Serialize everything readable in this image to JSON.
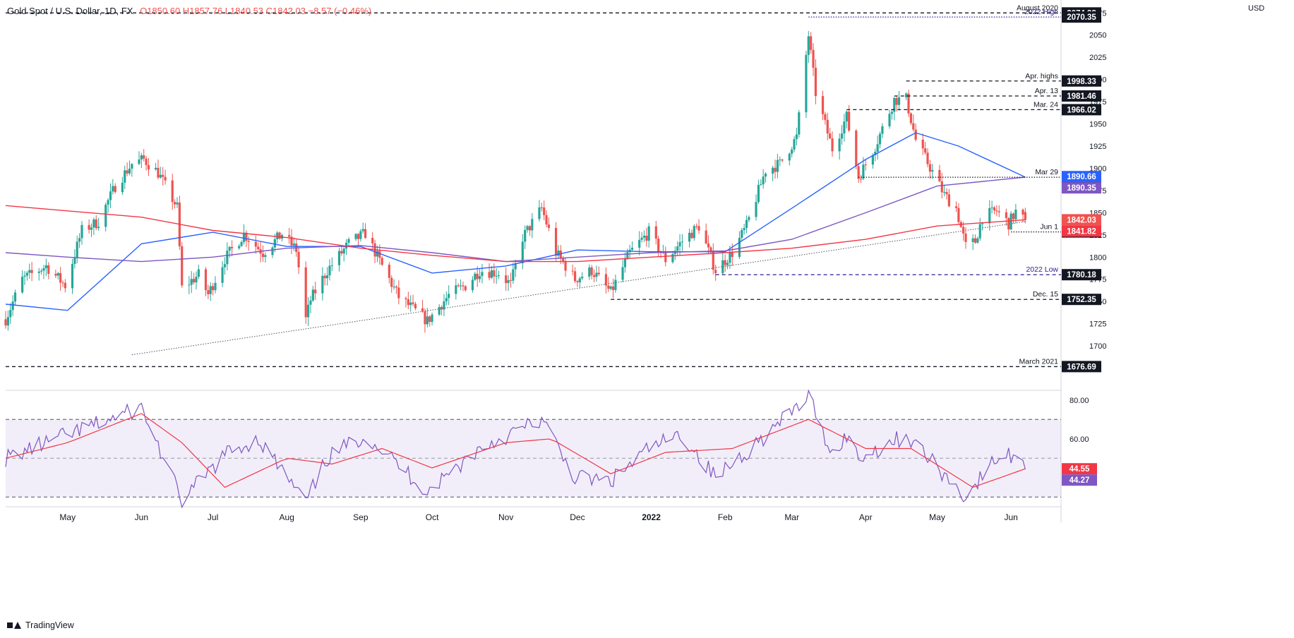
{
  "header": {
    "symbol": "Gold Spot / U.S. Dollar, 1D, FX",
    "ohlc": "O1850.60  H1857.76  L1840.53  C1842.03  −8.57 (−0.46%)"
  },
  "currency": "USD",
  "brand": "TradingView",
  "chart_data": [
    {
      "type": "candlestick",
      "title": "Gold Spot / U.S. Dollar, 1D, FX",
      "ylim": [
        1650,
        2080
      ],
      "y_ticks": [
        1700,
        1725,
        1750,
        1775,
        1800,
        1825,
        1850,
        1875,
        1900,
        1925,
        1950,
        1975,
        2000,
        2025,
        2050,
        2075
      ],
      "x_labels": [
        "May",
        "Jun",
        "Jul",
        "Aug",
        "Sep",
        "Oct",
        "Nov",
        "Dec",
        "2022",
        "Feb",
        "Mar",
        "Apr",
        "May",
        "Jun"
      ],
      "x_label_dates": [
        "2021-05-01",
        "2021-06-01",
        "2021-07-01",
        "2021-08-01",
        "2021-09-01",
        "2021-10-01",
        "2021-11-01",
        "2021-12-01",
        "2022-01-01",
        "2022-02-01",
        "2022-03-01",
        "2022-04-01",
        "2022-05-01",
        "2022-06-01"
      ],
      "colors": {
        "up": "#26a69a",
        "down": "#ef5350",
        "ma_fast": "#2962ff",
        "ma_mid": "#7e57c2",
        "ma_slow": "#f23645"
      },
      "price_path": [
        [
          "2021-04-05",
          1730
        ],
        [
          "2021-04-12",
          1775
        ],
        [
          "2021-04-22",
          1790
        ],
        [
          "2021-04-30",
          1768
        ],
        [
          "2021-05-07",
          1830
        ],
        [
          "2021-05-14",
          1840
        ],
        [
          "2021-05-21",
          1880
        ],
        [
          "2021-05-28",
          1905
        ],
        [
          "2021-06-02",
          1910
        ],
        [
          "2021-06-08",
          1895
        ],
        [
          "2021-06-11",
          1880
        ],
        [
          "2021-06-16",
          1856
        ],
        [
          "2021-06-18",
          1765
        ],
        [
          "2021-06-25",
          1780
        ],
        [
          "2021-06-29",
          1758
        ],
        [
          "2021-07-06",
          1798
        ],
        [
          "2021-07-14",
          1826
        ],
        [
          "2021-07-22",
          1805
        ],
        [
          "2021-07-30",
          1826
        ],
        [
          "2021-08-05",
          1808
        ],
        [
          "2021-08-09",
          1730
        ],
        [
          "2021-08-11",
          1752
        ],
        [
          "2021-08-18",
          1785
        ],
        [
          "2021-08-27",
          1815
        ],
        [
          "2021-09-03",
          1827
        ],
        [
          "2021-09-10",
          1790
        ],
        [
          "2021-09-17",
          1755
        ],
        [
          "2021-09-29",
          1728
        ],
        [
          "2021-10-08",
          1757
        ],
        [
          "2021-10-15",
          1768
        ],
        [
          "2021-10-21",
          1785
        ],
        [
          "2021-10-29",
          1782
        ],
        [
          "2021-11-03",
          1769
        ],
        [
          "2021-11-08",
          1822
        ],
        [
          "2021-11-16",
          1855
        ],
        [
          "2021-11-22",
          1805
        ],
        [
          "2021-11-30",
          1775
        ],
        [
          "2021-12-07",
          1785
        ],
        [
          "2021-12-15",
          1760
        ],
        [
          "2021-12-23",
          1805
        ],
        [
          "2021-12-31",
          1828
        ],
        [
          "2022-01-07",
          1797
        ],
        [
          "2022-01-14",
          1818
        ],
        [
          "2022-01-21",
          1835
        ],
        [
          "2022-01-28",
          1785
        ],
        [
          "2022-02-04",
          1805
        ],
        [
          "2022-02-10",
          1835
        ],
        [
          "2022-02-18",
          1898
        ],
        [
          "2022-02-24",
          1905
        ],
        [
          "2022-03-03",
          1935
        ],
        [
          "2022-03-08",
          2050
        ],
        [
          "2022-03-11",
          1985
        ],
        [
          "2022-03-18",
          1922
        ],
        [
          "2022-03-24",
          1958
        ],
        [
          "2022-03-29",
          1890
        ],
        [
          "2022-04-05",
          1925
        ],
        [
          "2022-04-13",
          1977
        ],
        [
          "2022-04-18",
          1978
        ],
        [
          "2022-04-22",
          1932
        ],
        [
          "2022-04-29",
          1896
        ],
        [
          "2022-05-04",
          1870
        ],
        [
          "2022-05-09",
          1855
        ],
        [
          "2022-05-13",
          1812
        ],
        [
          "2022-05-17",
          1818
        ],
        [
          "2022-05-20",
          1845
        ],
        [
          "2022-05-26",
          1852
        ],
        [
          "2022-05-31",
          1838
        ],
        [
          "2022-06-03",
          1851
        ],
        [
          "2022-06-06",
          1843
        ],
        [
          "2022-06-07",
          1842
        ]
      ],
      "moving_averages": [
        {
          "color": "#2962ff",
          "points": [
            [
              "2021-04-05",
              1747
            ],
            [
              "2021-05-01",
              1740
            ],
            [
              "2021-06-01",
              1815
            ],
            [
              "2021-07-01",
              1828
            ],
            [
              "2021-08-01",
              1812
            ],
            [
              "2021-09-01",
              1812
            ],
            [
              "2021-10-01",
              1782
            ],
            [
              "2021-11-01",
              1790
            ],
            [
              "2021-12-01",
              1808
            ],
            [
              "2022-01-01",
              1806
            ],
            [
              "2022-02-01",
              1806
            ],
            [
              "2022-03-01",
              1855
            ],
            [
              "2022-04-01",
              1910
            ],
            [
              "2022-04-22",
              1940
            ],
            [
              "2022-05-10",
              1925
            ],
            [
              "2022-06-07",
              1890
            ]
          ]
        },
        {
          "color": "#7e57c2",
          "points": [
            [
              "2021-04-05",
              1805
            ],
            [
              "2021-05-01",
              1800
            ],
            [
              "2021-06-01",
              1795
            ],
            [
              "2021-07-01",
              1800
            ],
            [
              "2021-08-01",
              1810
            ],
            [
              "2021-09-01",
              1813
            ],
            [
              "2021-10-01",
              1805
            ],
            [
              "2021-11-01",
              1795
            ],
            [
              "2021-12-01",
              1800
            ],
            [
              "2022-01-01",
              1805
            ],
            [
              "2022-02-01",
              1807
            ],
            [
              "2022-03-01",
              1820
            ],
            [
              "2022-04-01",
              1850
            ],
            [
              "2022-05-01",
              1880
            ],
            [
              "2022-06-07",
              1890
            ]
          ]
        },
        {
          "color": "#f23645",
          "points": [
            [
              "2021-04-05",
              1858
            ],
            [
              "2021-06-01",
              1845
            ],
            [
              "2021-07-01",
              1830
            ],
            [
              "2021-08-01",
              1822
            ],
            [
              "2021-09-01",
              1810
            ],
            [
              "2021-10-01",
              1802
            ],
            [
              "2021-11-01",
              1795
            ],
            [
              "2021-12-01",
              1795
            ],
            [
              "2022-01-01",
              1800
            ],
            [
              "2022-02-01",
              1805
            ],
            [
              "2022-03-01",
              1810
            ],
            [
              "2022-04-01",
              1820
            ],
            [
              "2022-05-01",
              1835
            ],
            [
              "2022-06-07",
              1842
            ]
          ]
        }
      ],
      "levels": [
        {
          "label": "August 2020",
          "price_label": "2074.98",
          "value": 2074.98,
          "style": "dashed",
          "color": "#131722",
          "start": "2021-04-05"
        },
        {
          "label": "2022 High",
          "price_label": "2070.35",
          "value": 2070.35,
          "style": "dotted",
          "color": "#311b92",
          "start": "2022-03-08"
        },
        {
          "label": "Apr. highs",
          "price_label": "1998.33",
          "value": 1998.33,
          "style": "dashed",
          "color": "#131722",
          "start": "2022-04-18"
        },
        {
          "label": "Apr. 13",
          "price_label": "1981.46",
          "value": 1981.46,
          "style": "dashed",
          "color": "#131722",
          "start": "2022-04-13"
        },
        {
          "label": "Mar. 24",
          "price_label": "1966.02",
          "value": 1966.02,
          "style": "dashed",
          "color": "#131722",
          "start": "2022-03-24"
        },
        {
          "label": "Mar 29",
          "price_label": "1889.91",
          "value": 1889.91,
          "style": "dotted",
          "color": "#131722",
          "start": "2022-03-29"
        },
        {
          "label": "Jun 1",
          "price_label": "1828.33",
          "value": 1828.33,
          "style": "dotted",
          "color": "#131722",
          "start": "2022-06-01"
        },
        {
          "label": "2022 Low",
          "price_label": "1780.18",
          "value": 1780.18,
          "style": "dashed",
          "color": "#311b92",
          "start": "2022-01-28"
        },
        {
          "label": "Dec. 15",
          "price_label": "1752.35",
          "value": 1752.35,
          "style": "dashed",
          "color": "#131722",
          "start": "2021-12-15"
        },
        {
          "label": "March 2021",
          "price_label": "1676.69",
          "value": 1676.69,
          "style": "dashed",
          "color": "#131722",
          "start": "2021-04-05"
        }
      ],
      "trendline": [
        [
          "2021-05-28",
          1690
        ],
        [
          "2022-06-07",
          1840
        ]
      ],
      "price_badges": [
        {
          "text": "1890.66",
          "value": 1890.66,
          "color": "#2962ff"
        },
        {
          "text": "1890.35",
          "value": 1890.35,
          "color": "#7e57c2"
        },
        {
          "text": "1842.03",
          "value": 1842.03,
          "color": "#ef5350"
        },
        {
          "text": "1841.82",
          "value": 1841.82,
          "color": "#f23645"
        }
      ]
    },
    {
      "type": "line",
      "title": "",
      "ylim": [
        25,
        85
      ],
      "y_ticks": [
        40,
        60,
        80
      ],
      "y_tick_labels": [
        "40.00",
        "60.00",
        "80.00"
      ],
      "bands": [
        30,
        50,
        70
      ],
      "series": [
        {
          "color": "#7e57c2",
          "points": [
            [
              "2021-04-05",
              50
            ],
            [
              "2021-05-01",
              62
            ],
            [
              "2021-06-01",
              76
            ],
            [
              "2021-06-18",
              28
            ],
            [
              "2021-07-06",
              52
            ],
            [
              "2021-07-20",
              60
            ],
            [
              "2021-08-09",
              27
            ],
            [
              "2021-08-18",
              50
            ],
            [
              "2021-09-03",
              62
            ],
            [
              "2021-09-29",
              33
            ],
            [
              "2021-10-21",
              55
            ],
            [
              "2021-11-16",
              70
            ],
            [
              "2021-11-30",
              40
            ],
            [
              "2021-12-15",
              38
            ],
            [
              "2021-12-31",
              55
            ],
            [
              "2022-01-14",
              62
            ],
            [
              "2022-01-28",
              40
            ],
            [
              "2022-02-24",
              68
            ],
            [
              "2022-03-08",
              82
            ],
            [
              "2022-03-18",
              52
            ],
            [
              "2022-03-24",
              62
            ],
            [
              "2022-03-29",
              50
            ],
            [
              "2022-04-18",
              62
            ],
            [
              "2022-04-29",
              48
            ],
            [
              "2022-05-13",
              30
            ],
            [
              "2022-05-26",
              50
            ],
            [
              "2022-06-03",
              52
            ],
            [
              "2022-06-07",
              44.27
            ]
          ]
        },
        {
          "color": "#f23645",
          "points": [
            [
              "2021-04-05",
              50
            ],
            [
              "2021-05-01",
              58
            ],
            [
              "2021-06-01",
              73
            ],
            [
              "2021-06-18",
              58
            ],
            [
              "2021-07-06",
              35
            ],
            [
              "2021-08-01",
              50
            ],
            [
              "2021-08-20",
              47
            ],
            [
              "2021-09-10",
              55
            ],
            [
              "2021-10-01",
              45
            ],
            [
              "2021-11-01",
              58
            ],
            [
              "2021-11-20",
              60
            ],
            [
              "2021-12-15",
              42
            ],
            [
              "2022-01-07",
              53
            ],
            [
              "2022-02-04",
              55
            ],
            [
              "2022-03-08",
              70
            ],
            [
              "2022-04-01",
              55
            ],
            [
              "2022-04-20",
              55
            ],
            [
              "2022-05-16",
              35
            ],
            [
              "2022-06-07",
              44.55
            ]
          ]
        }
      ],
      "price_badges": [
        {
          "text": "44.55",
          "value": 44.55,
          "color": "#f23645"
        },
        {
          "text": "44.27",
          "value": 44.27,
          "color": "#7e57c2"
        }
      ]
    }
  ]
}
